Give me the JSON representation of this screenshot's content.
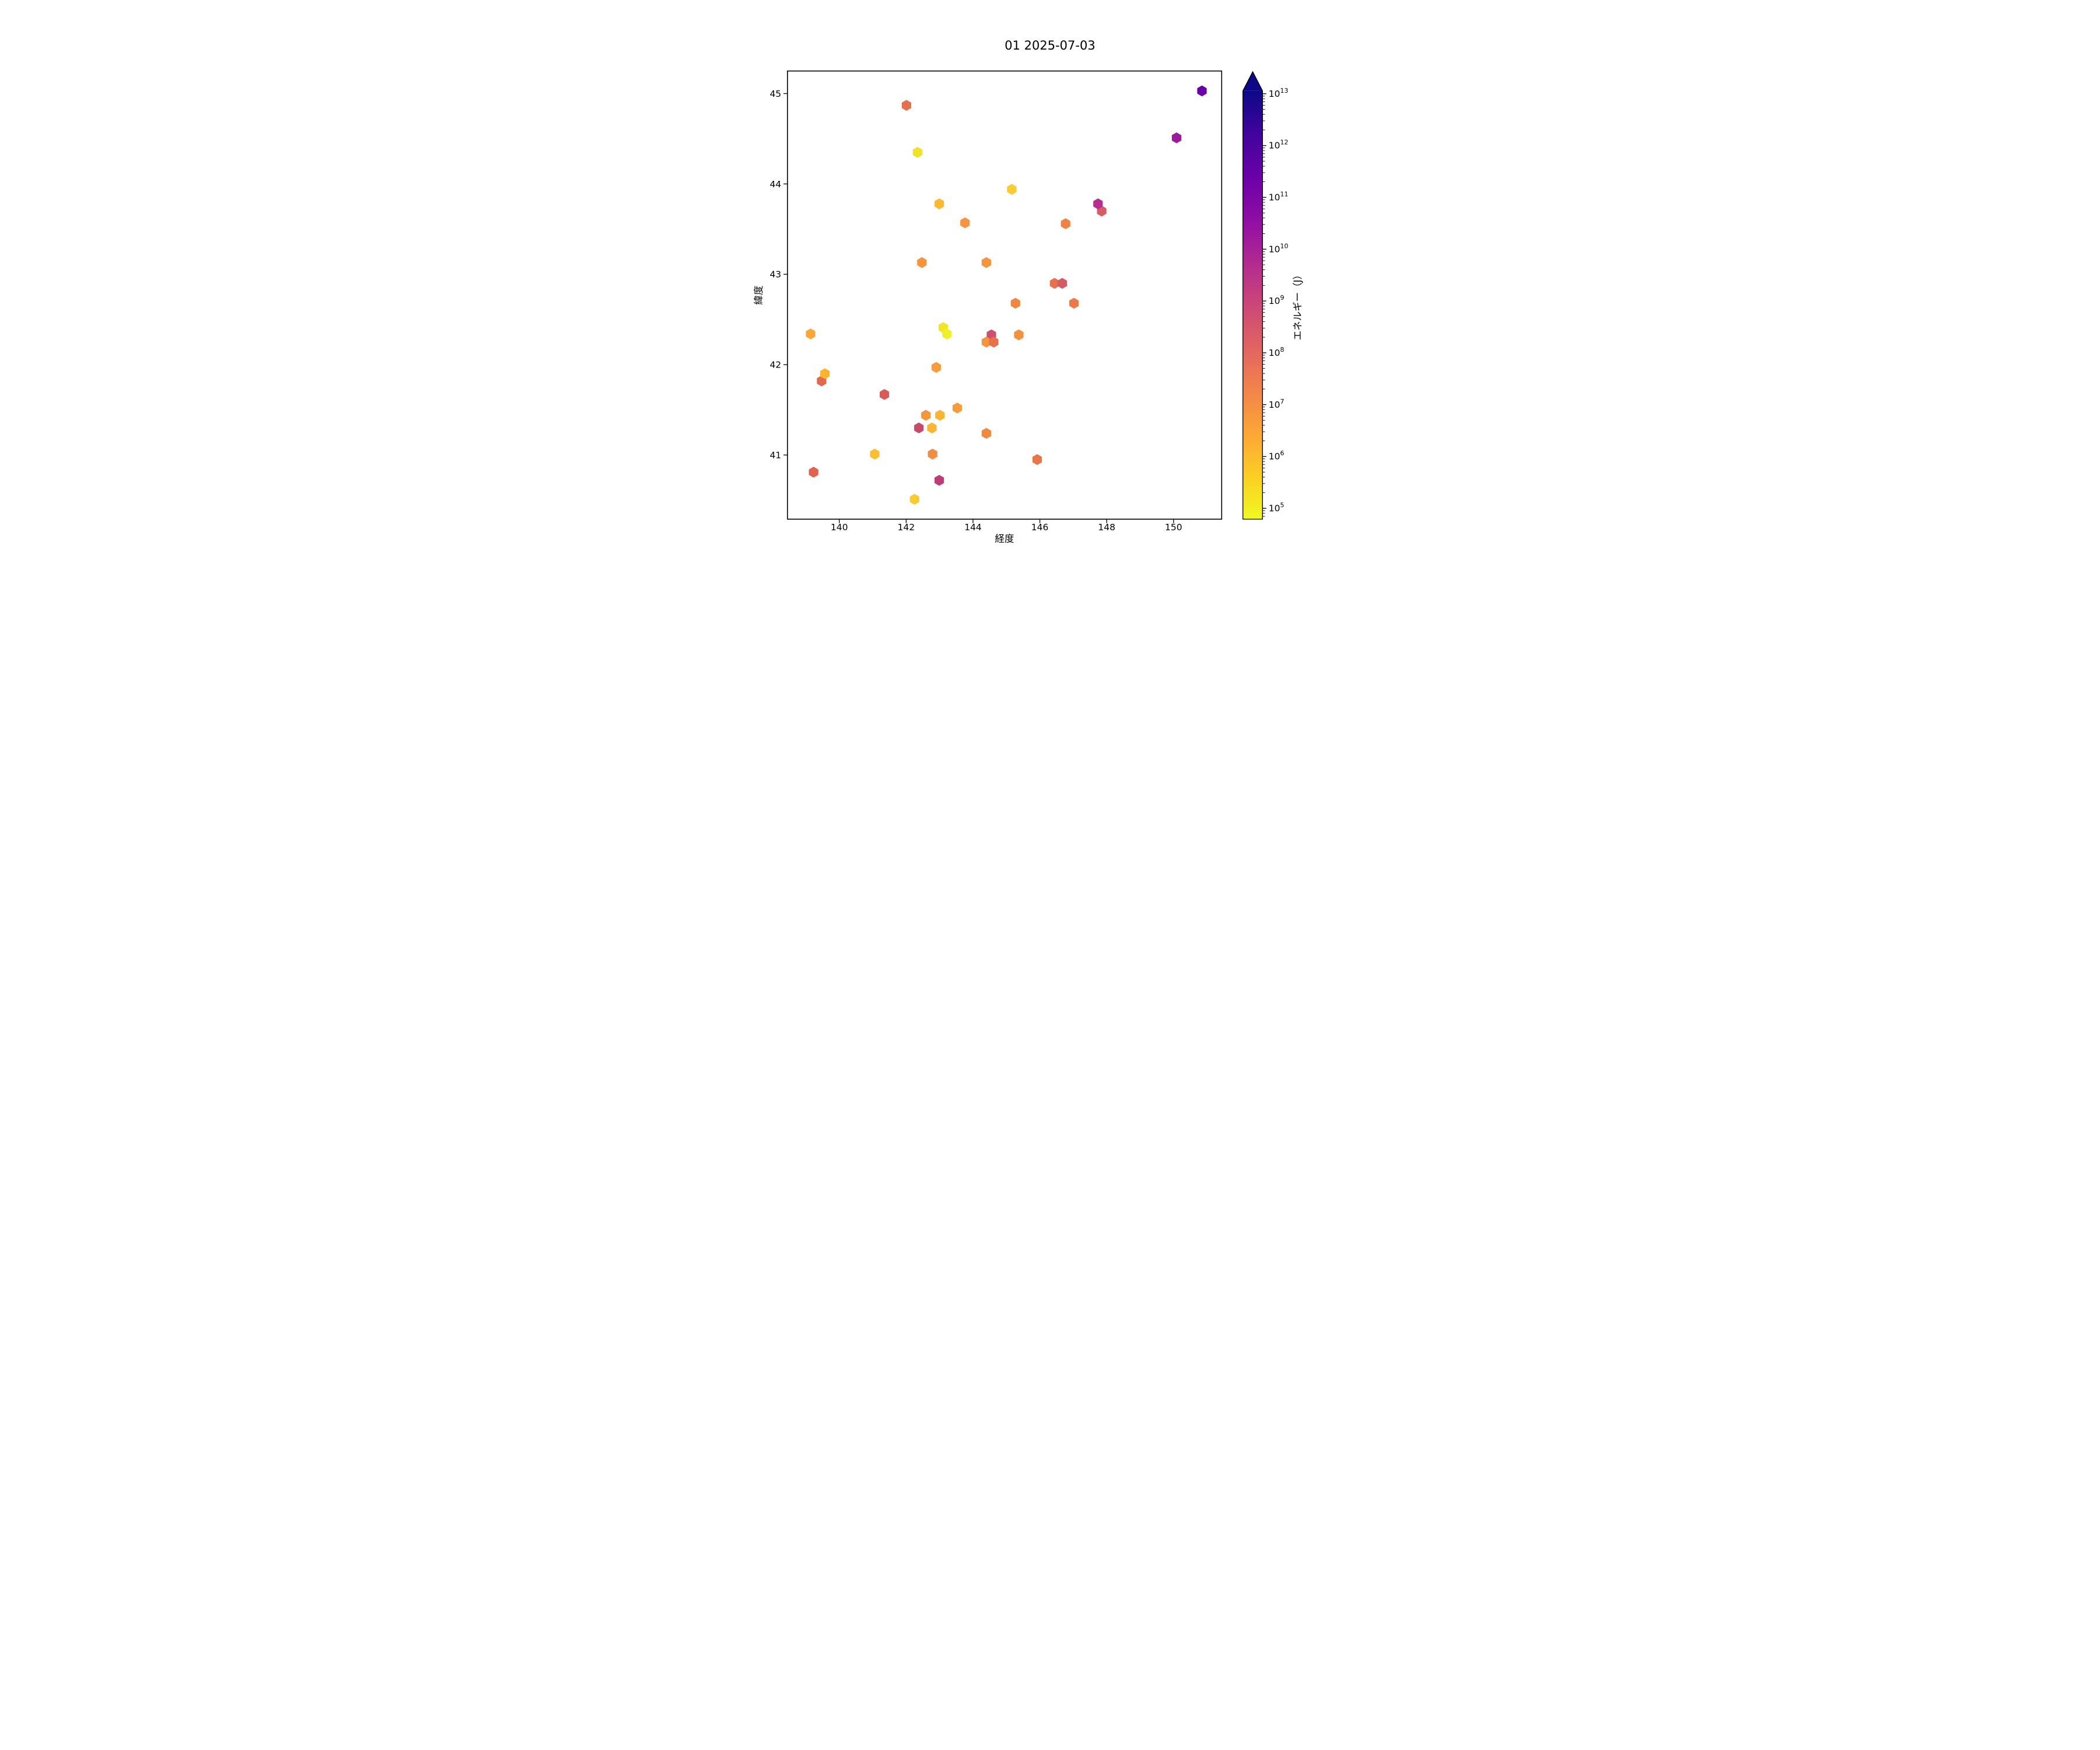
{
  "figure": {
    "background": "#ffffff",
    "title": "01 2025-07-03"
  },
  "chart_data": {
    "type": "scatter",
    "marker": "hexagon",
    "title": "01 2025-07-03",
    "xlabel": "経度",
    "ylabel": "緯度",
    "xlim": [
      138.45,
      151.44
    ],
    "ylim": [
      40.29,
      45.25
    ],
    "xticks": [
      140,
      142,
      144,
      146,
      148,
      150
    ],
    "yticks": [
      41,
      42,
      43,
      44,
      45
    ],
    "grid": false,
    "legend": "none",
    "colorbar": {
      "label": "エネルギー（J）",
      "scale": "log10",
      "tick_exponents": [
        13,
        12,
        11,
        10,
        9,
        8,
        7,
        6,
        5
      ],
      "range_exponents": [
        4.79,
        13.06
      ],
      "extend": "max",
      "colormap": "plasma_r",
      "gradient_top_to_bottom": [
        "#0d0887",
        "#41049d",
        "#6a00a8",
        "#8f0da4",
        "#b12a90",
        "#cc4778",
        "#e16462",
        "#f2844b",
        "#fca636",
        "#fcce25",
        "#f0f921"
      ],
      "arrow_color": "#0d0887"
    },
    "points": [
      {
        "lon": 139.23,
        "lat": 40.81,
        "energy_j": 93000000.0,
        "color": "#e0624f"
      },
      {
        "lon": 142.25,
        "lat": 40.51,
        "energy_j": 550000.0,
        "color": "#fbc930"
      },
      {
        "lon": 142.99,
        "lat": 40.72,
        "energy_j": 1700000000.0,
        "color": "#bd3d76"
      },
      {
        "lon": 141.06,
        "lat": 41.01,
        "energy_j": 800000.0,
        "color": "#fcbe32"
      },
      {
        "lon": 142.79,
        "lat": 41.01,
        "energy_j": 13000000.0,
        "color": "#f28c42"
      },
      {
        "lon": 145.92,
        "lat": 40.95,
        "energy_j": 33000000.0,
        "color": "#e8764b"
      },
      {
        "lon": 144.4,
        "lat": 41.24,
        "energy_j": 14000000.0,
        "color": "#f08a42"
      },
      {
        "lon": 142.38,
        "lat": 41.3,
        "energy_j": 1000000000.0,
        "color": "#c64a6a"
      },
      {
        "lon": 142.77,
        "lat": 41.3,
        "energy_j": 1200000.0,
        "color": "#fbb434"
      },
      {
        "lon": 142.59,
        "lat": 41.44,
        "energy_j": 5400000.0,
        "color": "#f3973d"
      },
      {
        "lon": 143.01,
        "lat": 41.44,
        "energy_j": 1200000.0,
        "color": "#fbb533"
      },
      {
        "lon": 143.53,
        "lat": 41.52,
        "energy_j": 4000000.0,
        "color": "#f49d3a"
      },
      {
        "lon": 141.35,
        "lat": 41.67,
        "energy_j": 170000000.0,
        "color": "#d85b59"
      },
      {
        "lon": 139.47,
        "lat": 41.82,
        "energy_j": 70000000.0,
        "color": "#e06a50"
      },
      {
        "lon": 139.57,
        "lat": 41.9,
        "energy_j": 1300000.0,
        "color": "#fcb42e"
      },
      {
        "lon": 142.9,
        "lat": 41.97,
        "energy_j": 4500000.0,
        "color": "#f89d3b"
      },
      {
        "lon": 139.14,
        "lat": 42.34,
        "energy_j": 2800000.0,
        "color": "#f9a63a"
      },
      {
        "lon": 143.11,
        "lat": 42.41,
        "energy_j": 160000.0,
        "color": "#f0e624"
      },
      {
        "lon": 143.22,
        "lat": 42.34,
        "energy_j": 110000.0,
        "color": "#eff02b"
      },
      {
        "lon": 144.55,
        "lat": 42.33,
        "energy_j": 480000000.0,
        "color": "#cf4f6e"
      },
      {
        "lon": 144.4,
        "lat": 42.25,
        "energy_j": 6000000.0,
        "color": "#f4953d"
      },
      {
        "lon": 144.62,
        "lat": 42.25,
        "energy_j": 40000000.0,
        "color": "#e8714d"
      },
      {
        "lon": 145.37,
        "lat": 42.33,
        "energy_j": 8000000.0,
        "color": "#f4913f"
      },
      {
        "lon": 145.27,
        "lat": 42.68,
        "energy_j": 17000000.0,
        "color": "#f0863f"
      },
      {
        "lon": 147.02,
        "lat": 42.68,
        "energy_j": 30000000.0,
        "color": "#ec7a49"
      },
      {
        "lon": 146.44,
        "lat": 42.9,
        "energy_j": 44000000.0,
        "color": "#e7704f"
      },
      {
        "lon": 146.67,
        "lat": 42.9,
        "energy_j": 200000000.0,
        "color": "#d45d64"
      },
      {
        "lon": 142.47,
        "lat": 43.13,
        "energy_j": 6000000.0,
        "color": "#f4953d"
      },
      {
        "lon": 144.4,
        "lat": 43.13,
        "energy_j": 6000000.0,
        "color": "#f49540"
      },
      {
        "lon": 143.76,
        "lat": 43.57,
        "energy_j": 7200000.0,
        "color": "#f89441"
      },
      {
        "lon": 146.77,
        "lat": 43.56,
        "energy_j": 19000000.0,
        "color": "#ef8345"
      },
      {
        "lon": 142.99,
        "lat": 43.78,
        "energy_j": 1100000.0,
        "color": "#fcb831"
      },
      {
        "lon": 147.85,
        "lat": 43.7,
        "energy_j": 220000000.0,
        "color": "#d85c63"
      },
      {
        "lon": 147.74,
        "lat": 43.78,
        "energy_j": 3900000000.0,
        "color": "#b5308e"
      },
      {
        "lon": 145.16,
        "lat": 43.94,
        "energy_j": 500000.0,
        "color": "#fbcb33"
      },
      {
        "lon": 142.34,
        "lat": 44.35,
        "energy_j": 190000.0,
        "color": "#efe229"
      },
      {
        "lon": 142.01,
        "lat": 44.87,
        "energy_j": 59000000.0,
        "color": "#e4704e"
      },
      {
        "lon": 150.09,
        "lat": 44.51,
        "energy_j": 26000000000.0,
        "color": "#9a1a9c"
      },
      {
        "lon": 150.85,
        "lat": 45.03,
        "energy_j": 260000000000.0,
        "color": "#6a00a8"
      }
    ]
  }
}
